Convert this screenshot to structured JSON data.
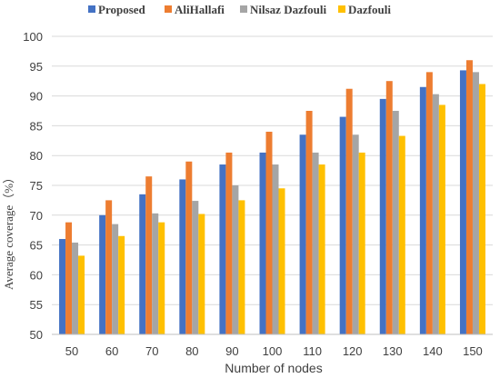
{
  "chart_data": {
    "type": "bar",
    "title": "",
    "xlabel": "Number of nodes",
    "ylabel": "Average coverage（%）",
    "categories": [
      "50",
      "60",
      "70",
      "80",
      "90",
      "100",
      "110",
      "120",
      "130",
      "140",
      "150"
    ],
    "ylim": [
      50,
      100
    ],
    "yticks": [
      50,
      55,
      60,
      65,
      70,
      75,
      80,
      85,
      90,
      95,
      100
    ],
    "grid": true,
    "legend_position": "top",
    "series": [
      {
        "name": "Proposed",
        "color": "#4472c4",
        "values": [
          66,
          70,
          73.5,
          76,
          78.5,
          80.5,
          83.5,
          86.5,
          89.5,
          91.5,
          94.3
        ]
      },
      {
        "name": "AliHallafi",
        "color": "#ed7d31",
        "values": [
          68.8,
          72.5,
          76.5,
          79,
          80.5,
          84,
          87.5,
          91.2,
          92.5,
          94,
          96
        ]
      },
      {
        "name": "Nilsaz Dazfouli",
        "color": "#a5a5a5",
        "values": [
          65.4,
          68.5,
          70.3,
          72.4,
          75,
          78.5,
          80.5,
          83.5,
          87.5,
          90.3,
          94
        ]
      },
      {
        "name": "Dazfouli",
        "color": "#ffc000",
        "values": [
          63.2,
          66.5,
          68.8,
          70.2,
          72.5,
          74.5,
          78.5,
          80.5,
          83.3,
          88.5,
          92
        ]
      }
    ]
  }
}
